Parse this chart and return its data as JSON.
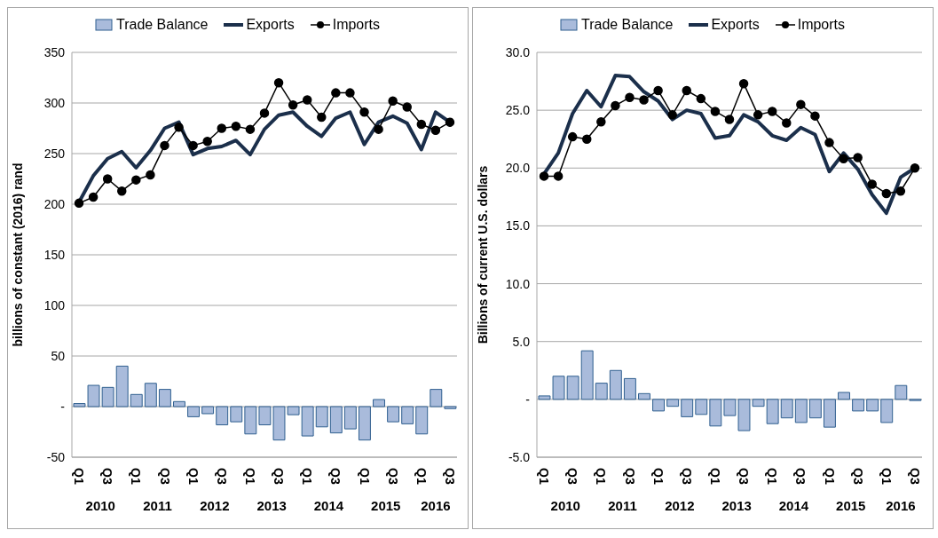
{
  "chart_data": [
    {
      "type": "line",
      "ylabel": "billions of constant (2016) rand",
      "categories": [
        "Q1",
        null,
        "Q3",
        null,
        "Q1",
        null,
        "Q3",
        null,
        "Q1",
        null,
        "Q3",
        null,
        "Q1",
        null,
        "Q3",
        null,
        "Q1",
        null,
        "Q3",
        null,
        "Q1",
        null,
        "Q3",
        null,
        "Q1",
        null,
        "Q3"
      ],
      "annotations": [
        "2010",
        "2011",
        "2012",
        "2013",
        "2014",
        "2015",
        "2016"
      ],
      "ylim": [
        -50,
        350
      ],
      "yticks": [
        {
          "value": -50,
          "label": "-50"
        },
        {
          "value": 0,
          "label": "-"
        },
        50,
        100,
        150,
        200,
        250,
        300,
        350
      ],
      "grid": "y",
      "legend": "top",
      "series": [
        {
          "name": "Trade Balance",
          "type": "bar",
          "color": "#a9bbdb",
          "values": [
            3,
            21,
            19,
            40,
            12,
            23,
            17,
            5,
            -10,
            -7,
            -18,
            -15,
            -27,
            -18,
            -33,
            -8,
            -29,
            -20,
            -26,
            -22,
            -33,
            7,
            -15,
            -17,
            -27,
            17,
            -2
          ]
        },
        {
          "name": "Exports",
          "color": "#1b2f4b",
          "marker": "none",
          "values": [
            202,
            228,
            245,
            252,
            236,
            253,
            275,
            281,
            249,
            255,
            257,
            263,
            249,
            274,
            288,
            291,
            277,
            267,
            285,
            291,
            259,
            281,
            287,
            280,
            254,
            291,
            281
          ]
        },
        {
          "name": "Imports",
          "color": "#000000",
          "marker": "circle",
          "values": [
            201,
            207,
            225,
            213,
            224,
            229,
            258,
            276,
            258,
            262,
            275,
            277,
            274,
            290,
            320,
            298,
            303,
            286,
            310,
            310,
            291,
            274,
            302,
            296,
            279,
            273,
            281
          ]
        }
      ]
    },
    {
      "type": "line",
      "ylabel": "Billions of current U.S. dollars",
      "categories": [
        "Q1",
        null,
        "Q3",
        null,
        "Q1",
        null,
        "Q3",
        null,
        "Q1",
        null,
        "Q3",
        null,
        "Q1",
        null,
        "Q3",
        null,
        "Q1",
        null,
        "Q3",
        null,
        "Q1",
        null,
        "Q3",
        null,
        "Q1",
        null,
        "Q3"
      ],
      "annotations": [
        "2010",
        "2011",
        "2012",
        "2013",
        "2014",
        "2015",
        "2016"
      ],
      "ylim": [
        -5,
        30
      ],
      "yticks": [
        {
          "value": -5,
          "label": "-5.0"
        },
        {
          "value": 0,
          "label": "-"
        },
        {
          "value": 5,
          "label": "5.0"
        },
        {
          "value": 10,
          "label": "10.0"
        },
        {
          "value": 15,
          "label": "15.0"
        },
        {
          "value": 20,
          "label": "20.0"
        },
        {
          "value": 25,
          "label": "25.0"
        },
        {
          "value": 30,
          "label": "30.0"
        }
      ],
      "grid": "y",
      "legend": "top",
      "series": [
        {
          "name": "Trade Balance",
          "type": "bar",
          "color": "#a9bbdb",
          "values": [
            0.3,
            2.0,
            2.0,
            4.2,
            1.4,
            2.5,
            1.8,
            0.5,
            -1.0,
            -0.6,
            -1.5,
            -1.3,
            -2.3,
            -1.4,
            -2.7,
            -0.6,
            -2.1,
            -1.6,
            -2.0,
            -1.6,
            -2.4,
            0.6,
            -1.0,
            -1.0,
            -2.0,
            1.2,
            -0.1
          ]
        },
        {
          "name": "Exports",
          "color": "#1b2f4b",
          "marker": "none",
          "values": [
            19.5,
            21.3,
            24.7,
            26.7,
            25.3,
            28.0,
            27.9,
            26.6,
            25.8,
            24.2,
            25.0,
            24.7,
            22.6,
            22.8,
            24.6,
            24.0,
            22.8,
            22.4,
            23.5,
            22.9,
            19.7,
            21.3,
            19.9,
            17.7,
            16.1,
            19.2,
            20.0
          ]
        },
        {
          "name": "Imports",
          "color": "#000000",
          "marker": "circle",
          "values": [
            19.3,
            19.3,
            22.7,
            22.5,
            24.0,
            25.4,
            26.1,
            25.9,
            26.7,
            24.6,
            26.7,
            26.0,
            24.9,
            24.2,
            27.3,
            24.6,
            24.9,
            23.9,
            25.5,
            24.5,
            22.2,
            20.8,
            20.9,
            18.6,
            17.8,
            18.0,
            20.0
          ]
        }
      ]
    }
  ]
}
